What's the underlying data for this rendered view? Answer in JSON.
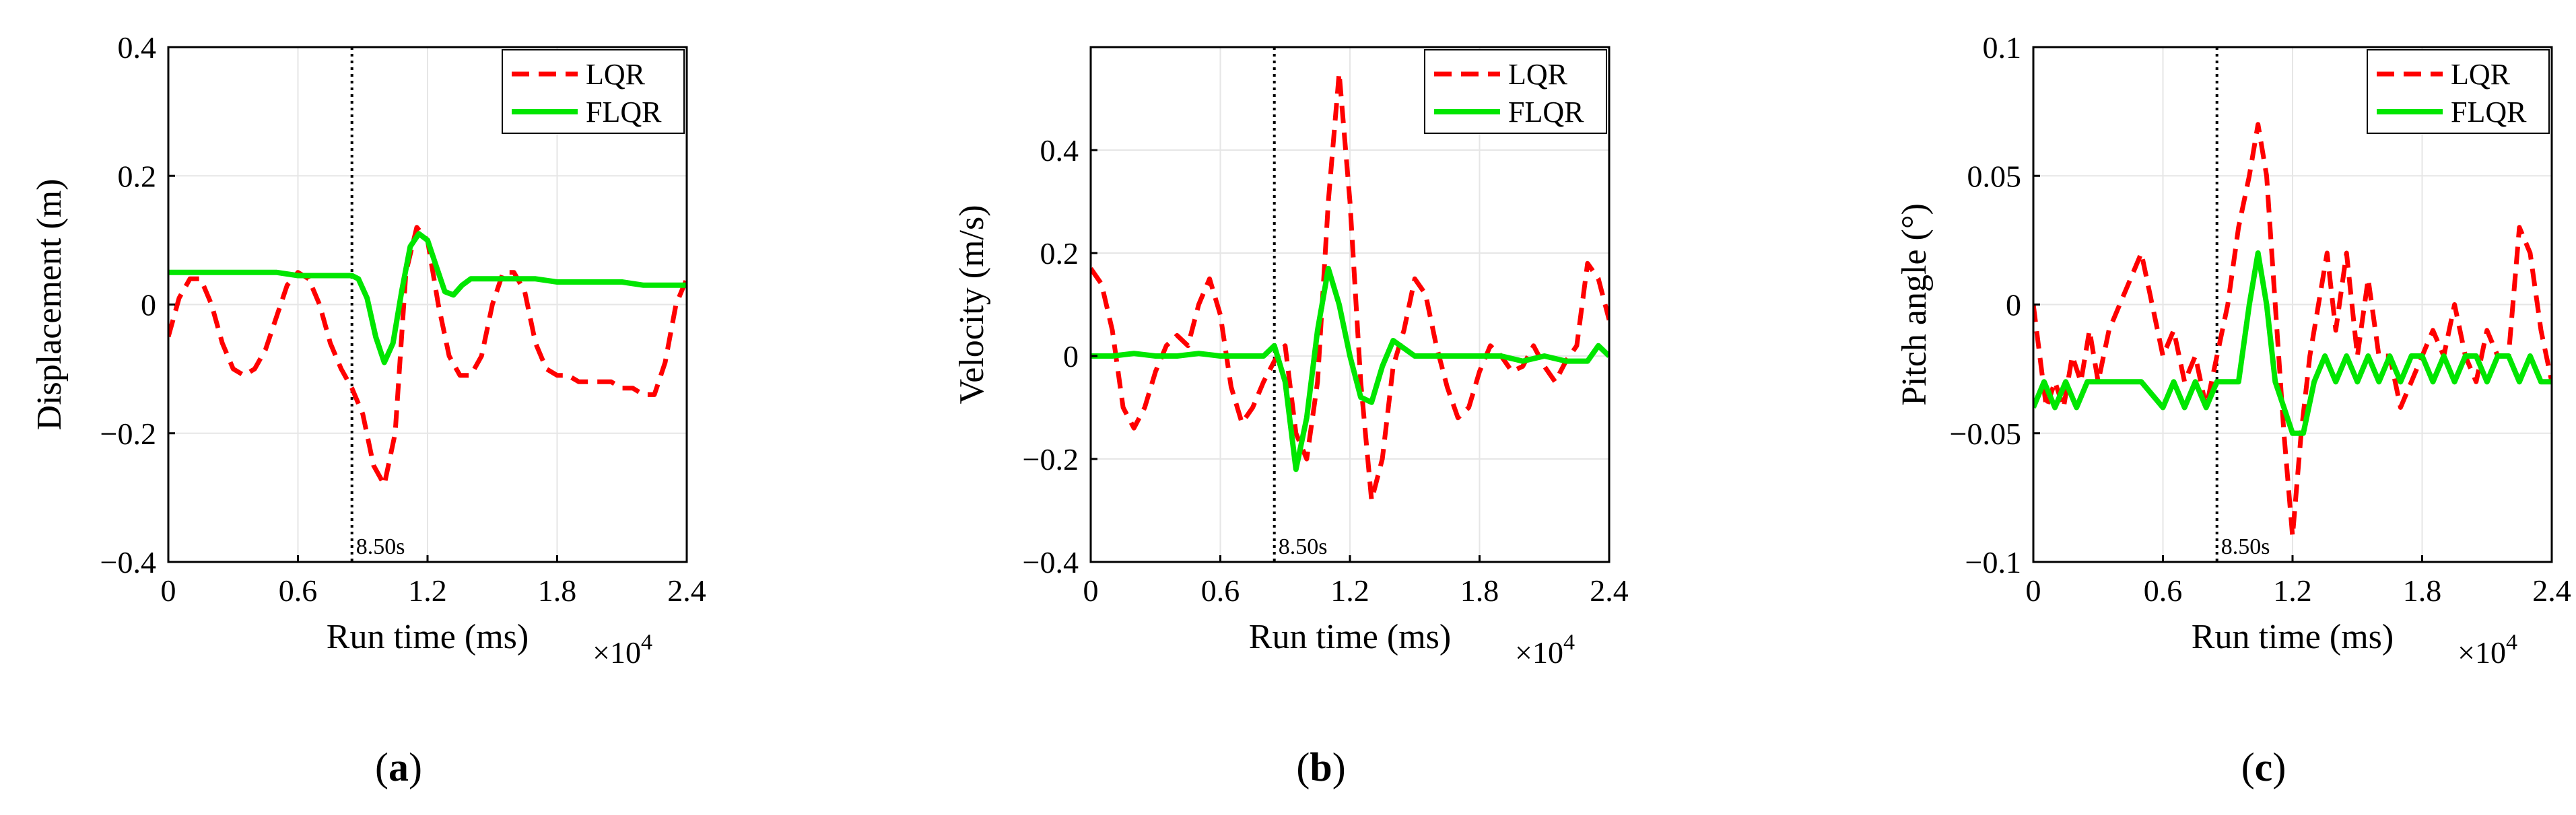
{
  "colors": {
    "LQR": "#ff0000",
    "FLQR": "#00e600",
    "grid": "#e6e6e6",
    "marker": "#000000"
  },
  "chart_data": [
    {
      "type": "line",
      "caption": "a",
      "xlabel": "Run time (ms)",
      "x_exponent": "×10",
      "x_exponent_power": "4",
      "ylabel": "Displacement (m)",
      "xlim": [
        0,
        2.4
      ],
      "ylim": [
        -0.4,
        0.4
      ],
      "xticks": [
        "0",
        "0.6",
        "1.2",
        "1.8",
        "2.4"
      ],
      "yticks": [
        "−0.4",
        "−0.2",
        "0",
        "0.2",
        "0.4"
      ],
      "grid": true,
      "legend_position": "top-right",
      "annotation": {
        "x": 0.85,
        "label": "8.50s"
      },
      "series": [
        {
          "name": "LQR",
          "style": "dashed",
          "x": [
            0,
            0.05,
            0.1,
            0.15,
            0.2,
            0.25,
            0.3,
            0.35,
            0.4,
            0.45,
            0.5,
            0.55,
            0.6,
            0.65,
            0.7,
            0.75,
            0.8,
            0.85,
            0.9,
            0.95,
            1.0,
            1.05,
            1.1,
            1.15,
            1.2,
            1.25,
            1.3,
            1.35,
            1.4,
            1.45,
            1.5,
            1.55,
            1.6,
            1.65,
            1.7,
            1.75,
            1.8,
            1.85,
            1.9,
            1.95,
            2.0,
            2.05,
            2.1,
            2.15,
            2.2,
            2.25,
            2.3,
            2.35,
            2.4
          ],
          "y": [
            -0.05,
            0.01,
            0.04,
            0.04,
            0.0,
            -0.06,
            -0.1,
            -0.11,
            -0.1,
            -0.07,
            -0.02,
            0.03,
            0.05,
            0.04,
            0.0,
            -0.06,
            -0.1,
            -0.13,
            -0.17,
            -0.25,
            -0.28,
            -0.2,
            0.05,
            0.12,
            0.1,
            0.0,
            -0.08,
            -0.11,
            -0.11,
            -0.08,
            0.0,
            0.05,
            0.05,
            0.02,
            -0.06,
            -0.1,
            -0.11,
            -0.11,
            -0.12,
            -0.12,
            -0.12,
            -0.12,
            -0.13,
            -0.13,
            -0.14,
            -0.14,
            -0.09,
            0.0,
            0.04
          ]
        },
        {
          "name": "FLQR",
          "style": "solid",
          "x": [
            0,
            0.1,
            0.2,
            0.3,
            0.4,
            0.5,
            0.6,
            0.7,
            0.8,
            0.85,
            0.88,
            0.92,
            0.96,
            1.0,
            1.04,
            1.08,
            1.12,
            1.16,
            1.2,
            1.24,
            1.28,
            1.32,
            1.36,
            1.4,
            1.5,
            1.6,
            1.7,
            1.8,
            1.9,
            2.0,
            2.1,
            2.2,
            2.3,
            2.4
          ],
          "y": [
            0.05,
            0.05,
            0.05,
            0.05,
            0.05,
            0.05,
            0.045,
            0.045,
            0.045,
            0.045,
            0.04,
            0.01,
            -0.05,
            -0.09,
            -0.06,
            0.02,
            0.09,
            0.11,
            0.1,
            0.06,
            0.02,
            0.015,
            0.03,
            0.04,
            0.04,
            0.04,
            0.04,
            0.035,
            0.035,
            0.035,
            0.035,
            0.03,
            0.03,
            0.03
          ]
        }
      ]
    },
    {
      "type": "line",
      "caption": "b",
      "xlabel": "Run time (ms)",
      "x_exponent": "×10",
      "x_exponent_power": "4",
      "ylabel": "Velocity (m/s)",
      "xlim": [
        0,
        2.4
      ],
      "ylim": [
        -0.4,
        0.6
      ],
      "xticks": [
        "0",
        "0.6",
        "1.2",
        "1.8",
        "2.4"
      ],
      "yticks": [
        "−0.4",
        "−0.2",
        "0",
        "0.2",
        "0.4"
      ],
      "grid": true,
      "legend_position": "top-right",
      "annotation": {
        "x": 0.85,
        "label": "8.50s"
      },
      "series": [
        {
          "name": "LQR",
          "style": "dashed",
          "x": [
            0,
            0.05,
            0.1,
            0.15,
            0.2,
            0.25,
            0.3,
            0.35,
            0.4,
            0.45,
            0.5,
            0.55,
            0.6,
            0.65,
            0.7,
            0.75,
            0.8,
            0.85,
            0.9,
            0.95,
            1.0,
            1.05,
            1.1,
            1.15,
            1.2,
            1.25,
            1.3,
            1.35,
            1.4,
            1.45,
            1.5,
            1.55,
            1.6,
            1.65,
            1.7,
            1.75,
            1.8,
            1.85,
            1.9,
            1.95,
            2.0,
            2.05,
            2.1,
            2.15,
            2.2,
            2.25,
            2.3,
            2.35,
            2.4
          ],
          "y": [
            0.17,
            0.14,
            0.05,
            -0.1,
            -0.14,
            -0.1,
            -0.03,
            0.02,
            0.04,
            0.02,
            0.1,
            0.15,
            0.08,
            -0.06,
            -0.13,
            -0.1,
            -0.05,
            -0.01,
            0.02,
            -0.15,
            -0.2,
            -0.05,
            0.3,
            0.55,
            0.3,
            -0.05,
            -0.28,
            -0.2,
            -0.02,
            0.05,
            0.15,
            0.12,
            0.02,
            -0.06,
            -0.12,
            -0.1,
            -0.03,
            0.02,
            0.0,
            -0.03,
            -0.02,
            0.02,
            -0.02,
            -0.05,
            -0.01,
            0.02,
            0.18,
            0.15,
            0.07
          ]
        },
        {
          "name": "FLQR",
          "style": "solid",
          "x": [
            0,
            0.1,
            0.2,
            0.3,
            0.4,
            0.5,
            0.6,
            0.7,
            0.8,
            0.85,
            0.9,
            0.95,
            1.0,
            1.05,
            1.1,
            1.15,
            1.2,
            1.25,
            1.3,
            1.35,
            1.4,
            1.5,
            1.6,
            1.7,
            1.8,
            1.9,
            2.0,
            2.1,
            2.2,
            2.3,
            2.35,
            2.4
          ],
          "y": [
            0.0,
            0.0,
            0.005,
            0.0,
            0.0,
            0.005,
            0.0,
            0.0,
            0.0,
            0.02,
            -0.05,
            -0.22,
            -0.12,
            0.05,
            0.17,
            0.1,
            0.0,
            -0.08,
            -0.09,
            -0.02,
            0.03,
            0.0,
            0.0,
            0.0,
            0.0,
            0.0,
            -0.01,
            0.0,
            -0.01,
            -0.01,
            0.02,
            0.0
          ]
        }
      ]
    },
    {
      "type": "line",
      "caption": "c",
      "xlabel": "Run time (ms)",
      "x_exponent": "×10",
      "x_exponent_power": "4",
      "ylabel": "Pitch angle (°)",
      "xlim": [
        0,
        2.4
      ],
      "ylim": [
        -0.1,
        0.1
      ],
      "xticks": [
        "0",
        "0.6",
        "1.2",
        "1.8",
        "2.4"
      ],
      "yticks": [
        "−0.1",
        "−0.05",
        "0",
        "0.05",
        "0.1"
      ],
      "grid": true,
      "legend_position": "top-right",
      "annotation": {
        "x": 0.85,
        "label": "8.50s"
      },
      "series": [
        {
          "name": "LQR",
          "style": "dashed",
          "x": [
            0,
            0.03,
            0.06,
            0.1,
            0.14,
            0.18,
            0.22,
            0.26,
            0.3,
            0.35,
            0.4,
            0.45,
            0.5,
            0.55,
            0.6,
            0.65,
            0.7,
            0.75,
            0.8,
            0.85,
            0.9,
            0.95,
            1.0,
            1.04,
            1.08,
            1.12,
            1.16,
            1.2,
            1.24,
            1.28,
            1.32,
            1.36,
            1.4,
            1.45,
            1.5,
            1.55,
            1.6,
            1.65,
            1.7,
            1.75,
            1.8,
            1.85,
            1.9,
            1.95,
            2.0,
            2.05,
            2.1,
            2.15,
            2.2,
            2.25,
            2.3,
            2.35,
            2.4
          ],
          "y": [
            0.0,
            -0.02,
            -0.04,
            -0.03,
            -0.04,
            -0.02,
            -0.03,
            -0.01,
            -0.03,
            -0.01,
            0.0,
            0.01,
            0.02,
            0.0,
            -0.02,
            -0.01,
            -0.03,
            -0.02,
            -0.04,
            -0.02,
            0.0,
            0.03,
            0.05,
            0.07,
            0.05,
            0.0,
            -0.05,
            -0.09,
            -0.05,
            -0.02,
            0.0,
            0.02,
            -0.01,
            0.02,
            -0.02,
            0.01,
            -0.02,
            -0.02,
            -0.04,
            -0.03,
            -0.02,
            -0.01,
            -0.02,
            0.0,
            -0.02,
            -0.03,
            -0.01,
            -0.02,
            -0.02,
            0.03,
            0.02,
            -0.01,
            -0.03
          ]
        },
        {
          "name": "FLQR",
          "style": "solid",
          "x": [
            0,
            0.05,
            0.1,
            0.15,
            0.2,
            0.25,
            0.3,
            0.4,
            0.5,
            0.6,
            0.65,
            0.7,
            0.75,
            0.8,
            0.85,
            0.9,
            0.95,
            1.0,
            1.04,
            1.08,
            1.12,
            1.16,
            1.2,
            1.25,
            1.3,
            1.35,
            1.4,
            1.45,
            1.5,
            1.55,
            1.6,
            1.65,
            1.7,
            1.75,
            1.8,
            1.85,
            1.9,
            1.95,
            2.0,
            2.05,
            2.1,
            2.15,
            2.2,
            2.25,
            2.3,
            2.35,
            2.4
          ],
          "y": [
            -0.04,
            -0.03,
            -0.04,
            -0.03,
            -0.04,
            -0.03,
            -0.03,
            -0.03,
            -0.03,
            -0.04,
            -0.03,
            -0.04,
            -0.03,
            -0.04,
            -0.03,
            -0.03,
            -0.03,
            0.0,
            0.02,
            0.0,
            -0.03,
            -0.04,
            -0.05,
            -0.05,
            -0.03,
            -0.02,
            -0.03,
            -0.02,
            -0.03,
            -0.02,
            -0.03,
            -0.02,
            -0.03,
            -0.02,
            -0.02,
            -0.03,
            -0.02,
            -0.03,
            -0.02,
            -0.02,
            -0.03,
            -0.02,
            -0.02,
            -0.03,
            -0.02,
            -0.03,
            -0.03
          ]
        }
      ]
    }
  ]
}
